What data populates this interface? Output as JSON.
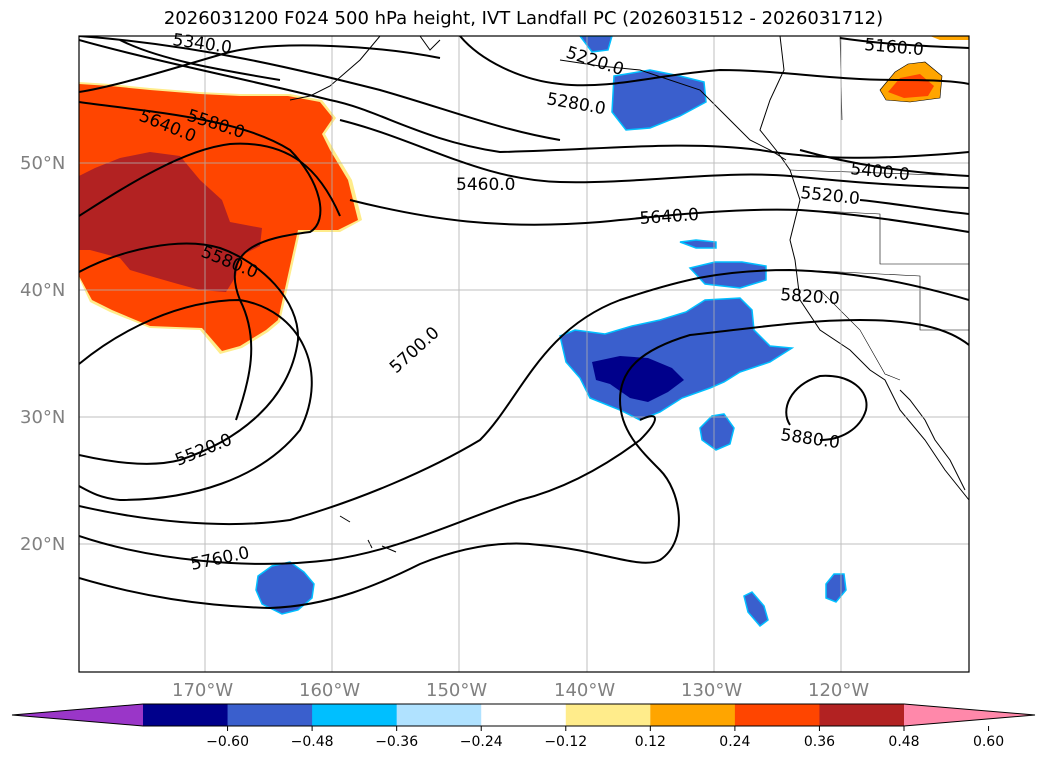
{
  "title": "2026031200 F024 500 hPa height, IVT Landfall PC (2026031512 - 2026031712)",
  "lat_labels": [
    "50°N",
    "40°N",
    "30°N",
    "20°N"
  ],
  "lon_labels": [
    "170°W",
    "160°W",
    "150°W",
    "140°W",
    "130°W",
    "120°W"
  ],
  "contour_labels": [
    "5340.0",
    "5580.0",
    "5640.0",
    "5580.0",
    "5520.0",
    "5760.0",
    "5700.0",
    "5460.0",
    "5640.0",
    "5220.0",
    "5280.0",
    "5160.0",
    "5400.0",
    "5520.0",
    "5820.0",
    "5880.0"
  ],
  "colorbar": {
    "ticks": [
      "−0.60",
      "−0.48",
      "−0.36",
      "−0.24",
      "−0.12",
      "0.12",
      "0.24",
      "0.36",
      "0.48",
      "0.60"
    ],
    "colors": [
      "#9a36c8",
      "#00008b",
      "#3a5fcd",
      "#00bfff",
      "#b0e2ff",
      "#ffffff",
      "#ffec8b",
      "#ffa500",
      "#ff4500",
      "#b22222",
      "#ff88aa"
    ]
  },
  "shading_colors": {
    "dark_blue": "#00008b",
    "blue": "#3a5fcd",
    "cyan": "#00bfff",
    "orange": "#ffa500",
    "red_orange": "#ff4500",
    "dark_red": "#b22222",
    "yellow": "#ffec8b"
  }
}
